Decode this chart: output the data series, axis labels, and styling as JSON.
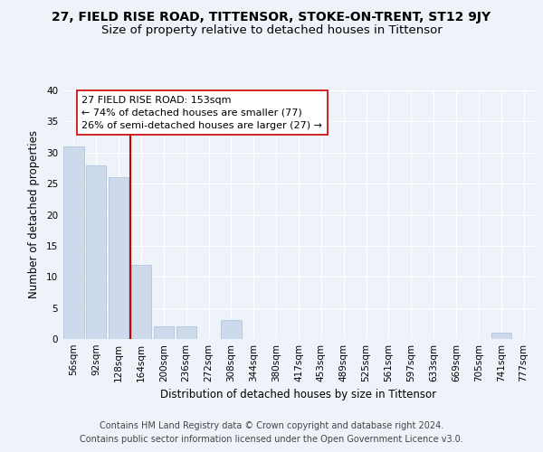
{
  "title": "27, FIELD RISE ROAD, TITTENSOR, STOKE-ON-TRENT, ST12 9JY",
  "subtitle": "Size of property relative to detached houses in Tittensor",
  "xlabel": "Distribution of detached houses by size in Tittensor",
  "ylabel": "Number of detached properties",
  "categories": [
    "56sqm",
    "92sqm",
    "128sqm",
    "164sqm",
    "200sqm",
    "236sqm",
    "272sqm",
    "308sqm",
    "344sqm",
    "380sqm",
    "417sqm",
    "453sqm",
    "489sqm",
    "525sqm",
    "561sqm",
    "597sqm",
    "633sqm",
    "669sqm",
    "705sqm",
    "741sqm",
    "777sqm"
  ],
  "values": [
    31,
    28,
    26,
    12,
    2,
    2,
    0,
    3,
    0,
    0,
    0,
    0,
    0,
    0,
    0,
    0,
    0,
    0,
    0,
    1,
    0
  ],
  "bar_color": "#cddaeb",
  "bar_edgecolor": "#aabfda",
  "vline_color": "#cc0000",
  "annotation_line1": "27 FIELD RISE ROAD: 153sqm",
  "annotation_line2": "← 74% of detached houses are smaller (77)",
  "annotation_line3": "26% of semi-detached houses are larger (27) →",
  "ylim": [
    0,
    40
  ],
  "yticks": [
    0,
    5,
    10,
    15,
    20,
    25,
    30,
    35,
    40
  ],
  "background_color": "#eef2f9",
  "plot_background": "#eef2f9",
  "footer_line1": "Contains HM Land Registry data © Crown copyright and database right 2024.",
  "footer_line2": "Contains public sector information licensed under the Open Government Licence v3.0.",
  "title_fontsize": 10,
  "subtitle_fontsize": 9.5,
  "axis_label_fontsize": 8.5,
  "tick_fontsize": 7.5,
  "annotation_fontsize": 8,
  "footer_fontsize": 7
}
